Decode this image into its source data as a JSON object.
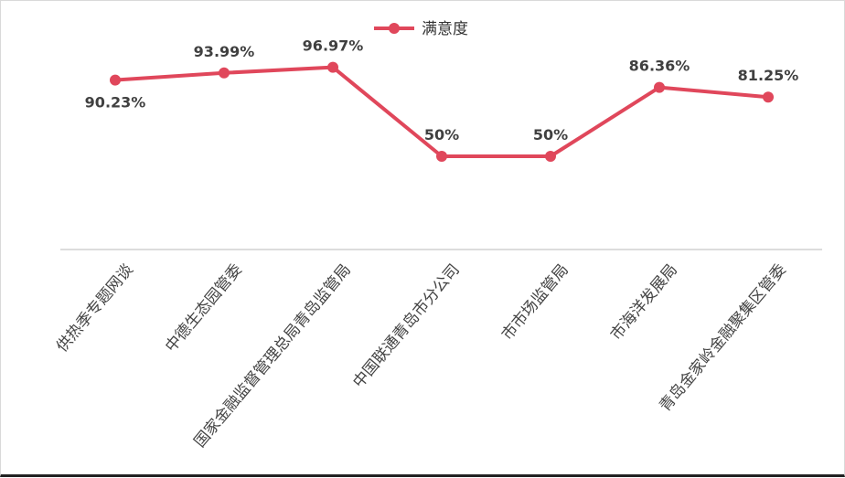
{
  "chart_data": {
    "type": "line",
    "categories": [
      "供热季专题网谈",
      "中德生态园管委",
      "国家金融监督管理总局青岛监管局",
      "中国联通青岛市分公司",
      "市市场监管局",
      "市海洋发展局",
      "青岛金家岭金融聚集区管委"
    ],
    "series": [
      {
        "name": "满意度",
        "values": [
          90.23,
          93.99,
          96.97,
          50,
          50,
          86.36,
          81.25
        ],
        "labels": [
          "90.23%",
          "93.99%",
          "96.97%",
          "50%",
          "50%",
          "86.36%",
          "81.25%"
        ],
        "color": "#e0475b"
      }
    ],
    "title": "",
    "xlabel": "",
    "ylabel": "",
    "ylim": [
      0,
      100
    ],
    "grid": false,
    "legend": "top-center",
    "axis_color": "#d0d0d0"
  }
}
